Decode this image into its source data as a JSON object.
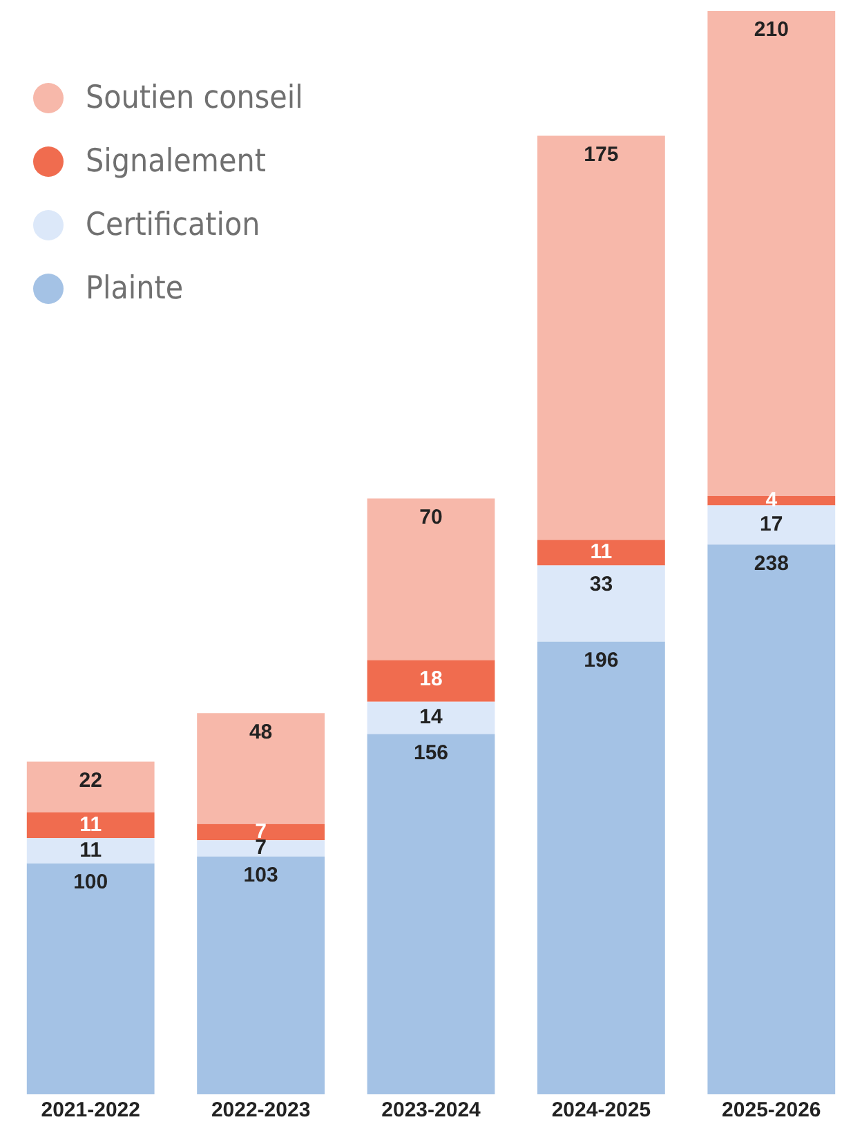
{
  "chart_data": {
    "type": "bar",
    "stacked": true,
    "categories": [
      "2021-2022",
      "2022-2023",
      "2023-2024",
      "2024-2025",
      "2025-2026"
    ],
    "series": [
      {
        "name": "Plainte",
        "color": "#a4c2e5",
        "values": [
          100,
          103,
          156,
          196,
          238
        ]
      },
      {
        "name": "Certification",
        "color": "#dce8f9",
        "values": [
          11,
          7,
          14,
          33,
          17
        ]
      },
      {
        "name": "Signalement",
        "color": "#f06c4f",
        "values": [
          11,
          7,
          18,
          11,
          4
        ]
      },
      {
        "name": "Soutien conseil",
        "color": "#f7b8aa",
        "values": [
          22,
          48,
          70,
          175,
          210
        ]
      }
    ],
    "data_labels": true,
    "legend": "top left",
    "grid": false,
    "tick_labels": "x"
  }
}
